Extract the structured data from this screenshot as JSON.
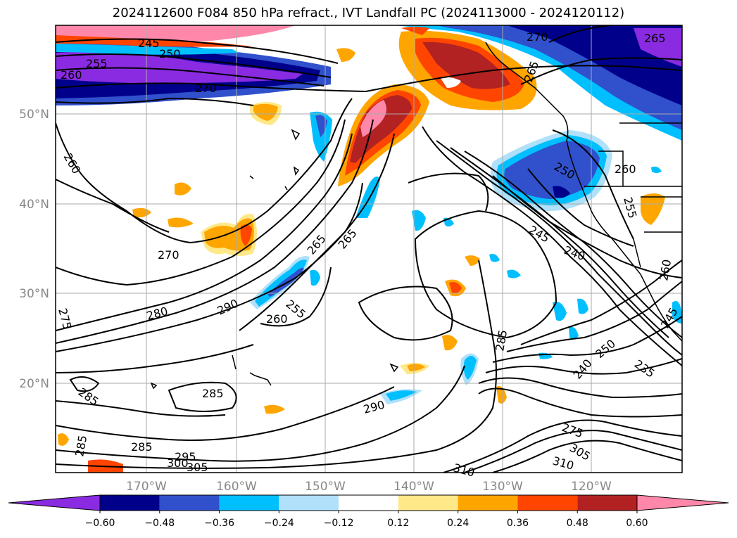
{
  "title": "2024112600 F084 850 hPa refract., IVT Landfall PC (2024113000 - 2024120112)",
  "lat_labels": [
    "50°N",
    "40°N",
    "30°N",
    "20°N"
  ],
  "lon_labels": [
    "170°W",
    "160°W",
    "150°W",
    "140°W",
    "130°W",
    "120°W"
  ],
  "colorbar": {
    "colors": [
      "#8a2be2",
      "#00008b",
      "#3050cc",
      "#00bfff",
      "#b0e0fa",
      "#ffffff",
      "#ffe888",
      "#ffa500",
      "#ff4500",
      "#b22222",
      "#ff88aa"
    ],
    "ticks": [
      "−0.60",
      "−0.48",
      "−0.36",
      "−0.24",
      "−0.12",
      "0.12",
      "0.24",
      "0.36",
      "0.48",
      "0.60"
    ]
  },
  "contour_labels": [
    {
      "text": "245"
    },
    {
      "text": "250"
    },
    {
      "text": "255"
    },
    {
      "text": "260"
    },
    {
      "text": "270"
    },
    {
      "text": "270"
    },
    {
      "text": "265"
    },
    {
      "text": "265"
    },
    {
      "text": "260"
    },
    {
      "text": "270"
    },
    {
      "text": "265"
    },
    {
      "text": "265"
    },
    {
      "text": "250"
    },
    {
      "text": "260"
    },
    {
      "text": "255"
    },
    {
      "text": "245"
    },
    {
      "text": "240"
    },
    {
      "text": "280"
    },
    {
      "text": "290"
    },
    {
      "text": "255"
    },
    {
      "text": "260"
    },
    {
      "text": "275"
    },
    {
      "text": "285"
    },
    {
      "text": "260"
    },
    {
      "text": "245"
    },
    {
      "text": "285"
    },
    {
      "text": "285"
    },
    {
      "text": "290"
    },
    {
      "text": "250"
    },
    {
      "text": "240"
    },
    {
      "text": "235"
    },
    {
      "text": "285"
    },
    {
      "text": "285"
    },
    {
      "text": "295"
    },
    {
      "text": "300"
    },
    {
      "text": "305"
    },
    {
      "text": "310"
    },
    {
      "text": "310"
    },
    {
      "text": "305"
    },
    {
      "text": "275"
    }
  ]
}
